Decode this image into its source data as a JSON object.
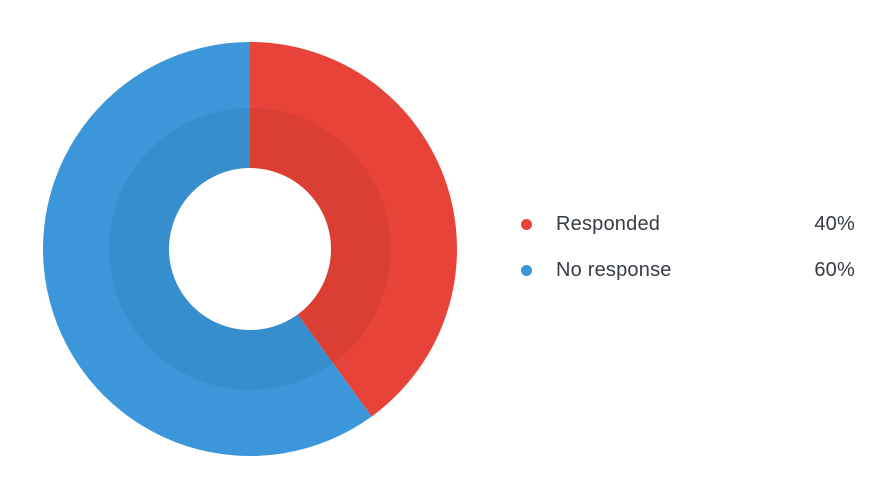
{
  "page": {
    "background_color": "#ffffff",
    "text_color": "#363c43"
  },
  "chart_data": {
    "type": "pie",
    "subtype": "donut",
    "title": "",
    "categories": [
      "Responded",
      "No response"
    ],
    "values": [
      40,
      60
    ],
    "value_labels": [
      "40%",
      "60%"
    ],
    "colors": [
      "#e84338",
      "#3b97d9"
    ],
    "start_angle_deg": -90,
    "direction": "clockwise",
    "hole_ratio": 0.39,
    "inner_shade_ratio": 0.68,
    "inner_shade_opacity": 0.055,
    "legend_position": "right",
    "grid": false
  },
  "legend": {
    "items": [
      {
        "label": "Responded",
        "value": "40%",
        "color": "#e84338"
      },
      {
        "label": "No response",
        "value": "60%",
        "color": "#3b97d9"
      }
    ]
  }
}
